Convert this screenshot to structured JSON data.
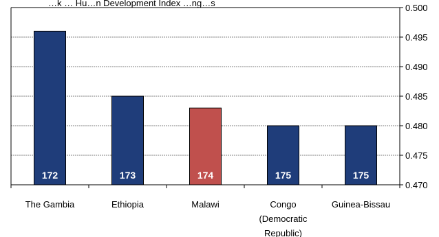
{
  "chart_data": {
    "type": "bar",
    "title": "…k … Hu…n Development Index …ng…s",
    "categories": [
      "The Gambia",
      "Ethiopia",
      "Malawi",
      "Congo (Democratic Republic)",
      "Guinea-Bissau"
    ],
    "category_lines": [
      [
        "The Gambia"
      ],
      [
        "Ethiopia"
      ],
      [
        "Malawi"
      ],
      [
        "Congo",
        "(Democratic",
        "Republic)"
      ],
      [
        "Guinea-Bissau"
      ]
    ],
    "values": [
      0.496,
      0.485,
      0.483,
      0.48,
      0.48
    ],
    "ranks": [
      "172",
      "173",
      "174",
      "175",
      "175"
    ],
    "highlight_index": 2,
    "ylim": [
      0.47,
      0.5
    ],
    "yticks": [
      0.47,
      0.475,
      0.48,
      0.485,
      0.49,
      0.495,
      0.5
    ],
    "ytick_labels": [
      "0.470",
      "0.475",
      "0.480",
      "0.485",
      "0.490",
      "0.495",
      "0.500"
    ],
    "y_axis_position": "right",
    "grid": true,
    "colors": {
      "bar": "#1f3d7a",
      "highlight": "#c0504d",
      "grid": "#808080",
      "rank_text": "#ffffff"
    }
  }
}
